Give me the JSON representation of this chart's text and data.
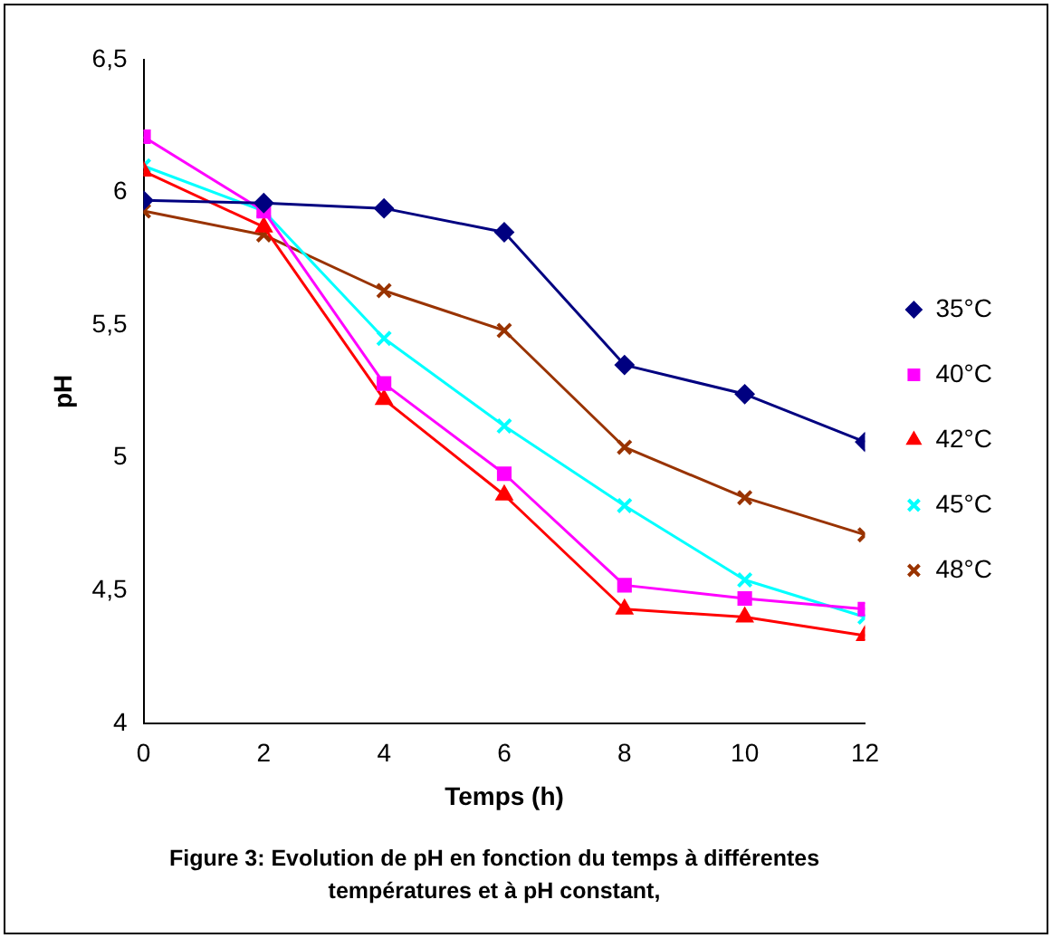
{
  "chart_data": {
    "type": "line",
    "xlabel": "Temps (h)",
    "ylabel": "pH",
    "x": [
      0,
      2,
      4,
      6,
      8,
      10,
      12
    ],
    "xlim": [
      0,
      12
    ],
    "xticks": [
      0,
      2,
      4,
      6,
      8,
      10,
      12
    ],
    "ylim": [
      4,
      6.5
    ],
    "yticks": [
      4,
      {
        "value": 4.5,
        "label": "4,5"
      },
      5,
      {
        "value": 5.5,
        "label": "5,5"
      },
      6,
      {
        "value": 6.5,
        "label": "6,5"
      }
    ],
    "grid": false,
    "legend": "right",
    "line_style": "solid",
    "series": [
      {
        "name": "35°C",
        "color": "#000080",
        "marker": "diamond",
        "values": [
          5.97,
          5.96,
          5.94,
          5.85,
          5.35,
          5.24,
          5.06
        ]
      },
      {
        "name": "40°C",
        "color": "#ff00ff",
        "marker": "square",
        "values": [
          6.21,
          5.93,
          5.28,
          4.94,
          4.52,
          4.47,
          4.43
        ]
      },
      {
        "name": "42°C",
        "color": "#ff0000",
        "marker": "triangle",
        "values": [
          6.08,
          5.87,
          5.22,
          4.86,
          4.43,
          4.4,
          4.33
        ]
      },
      {
        "name": "45°C",
        "color": "#00ffff",
        "marker": "cross",
        "values": [
          6.1,
          5.93,
          5.45,
          5.12,
          4.82,
          4.54,
          4.4
        ]
      },
      {
        "name": "48°C",
        "color": "#993300",
        "marker": "cross",
        "values": [
          5.93,
          5.84,
          5.63,
          5.48,
          5.04,
          4.85,
          4.71
        ]
      }
    ],
    "annotations": [
      "Figure 3:   Evolution de pH en fonction du temps à différentes températures et à pH constant,"
    ]
  }
}
